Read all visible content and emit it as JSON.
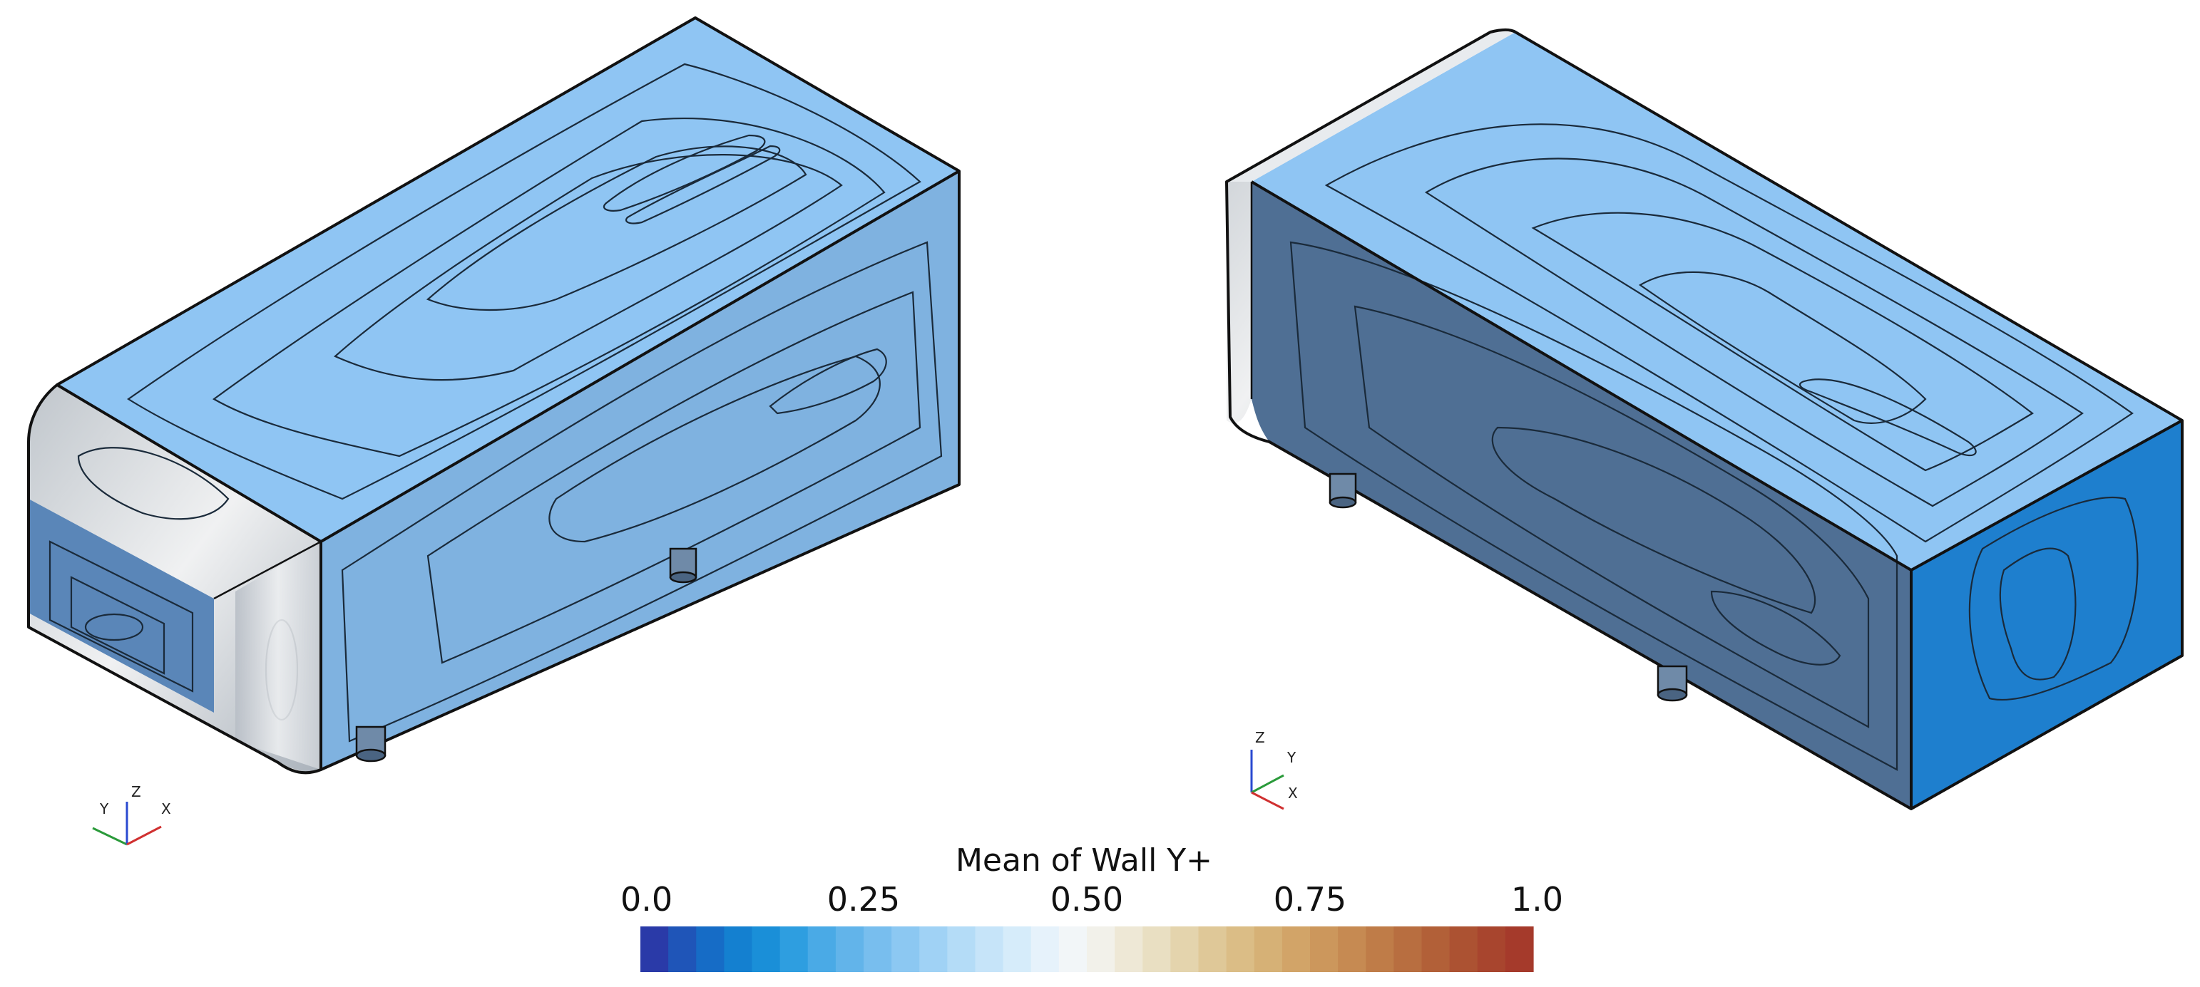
{
  "legend": {
    "title": "Mean of Wall Y+",
    "ticks": [
      {
        "value": 0.0,
        "label": "0.0"
      },
      {
        "value": 0.25,
        "label": "0.25"
      },
      {
        "value": 0.5,
        "label": "0.50"
      },
      {
        "value": 0.75,
        "label": "0.75"
      },
      {
        "value": 1.0,
        "label": "1.0"
      }
    ],
    "range": [
      0.0,
      1.0
    ],
    "band_count": 32,
    "colormap": [
      "#2a3aa8",
      "#1f55b8",
      "#166cc6",
      "#1480d0",
      "#1a8fd8",
      "#2e9ee0",
      "#4aaae6",
      "#62b4ea",
      "#78beee",
      "#8cc8f2",
      "#a0d2f5",
      "#b4dcf7",
      "#c6e4f9",
      "#d6ecfa",
      "#e6f2fb",
      "#f2f6f8",
      "#f2f1ea",
      "#eee8d6",
      "#e9dfc2",
      "#e4d4ad",
      "#dfc898",
      "#dbbd86",
      "#d6b176",
      "#d2a468",
      "#cc975c",
      "#c68a52",
      "#bf7c48",
      "#b86e40",
      "#b26038",
      "#ac5232",
      "#a8452e",
      "#a53a2b"
    ]
  },
  "views": [
    {
      "triad": {
        "labels": [
          "Y",
          "Z",
          "X"
        ],
        "colors": [
          "#2a9a3a",
          "#2a4ad0",
          "#d03030"
        ]
      }
    },
    {
      "triad": {
        "labels": [
          "Z",
          "Y",
          "X"
        ],
        "colors": [
          "#2a4ad0",
          "#2a9a3a",
          "#d03030"
        ]
      }
    }
  ],
  "colors": {
    "top_light": "#8fc5f3",
    "top_mid": "#62aeea",
    "top_core": "#3f9ae2",
    "top_deep": "#2785d6",
    "side_light": "#7fb2e0",
    "side_mid": "#5f9ed8",
    "end_shade": "#d6dbe0",
    "end_core": "#1a5fa6",
    "dark_side": "#4f6f94",
    "dark_side_core": "#3e5f86",
    "bright_end": "#1e7fce"
  }
}
